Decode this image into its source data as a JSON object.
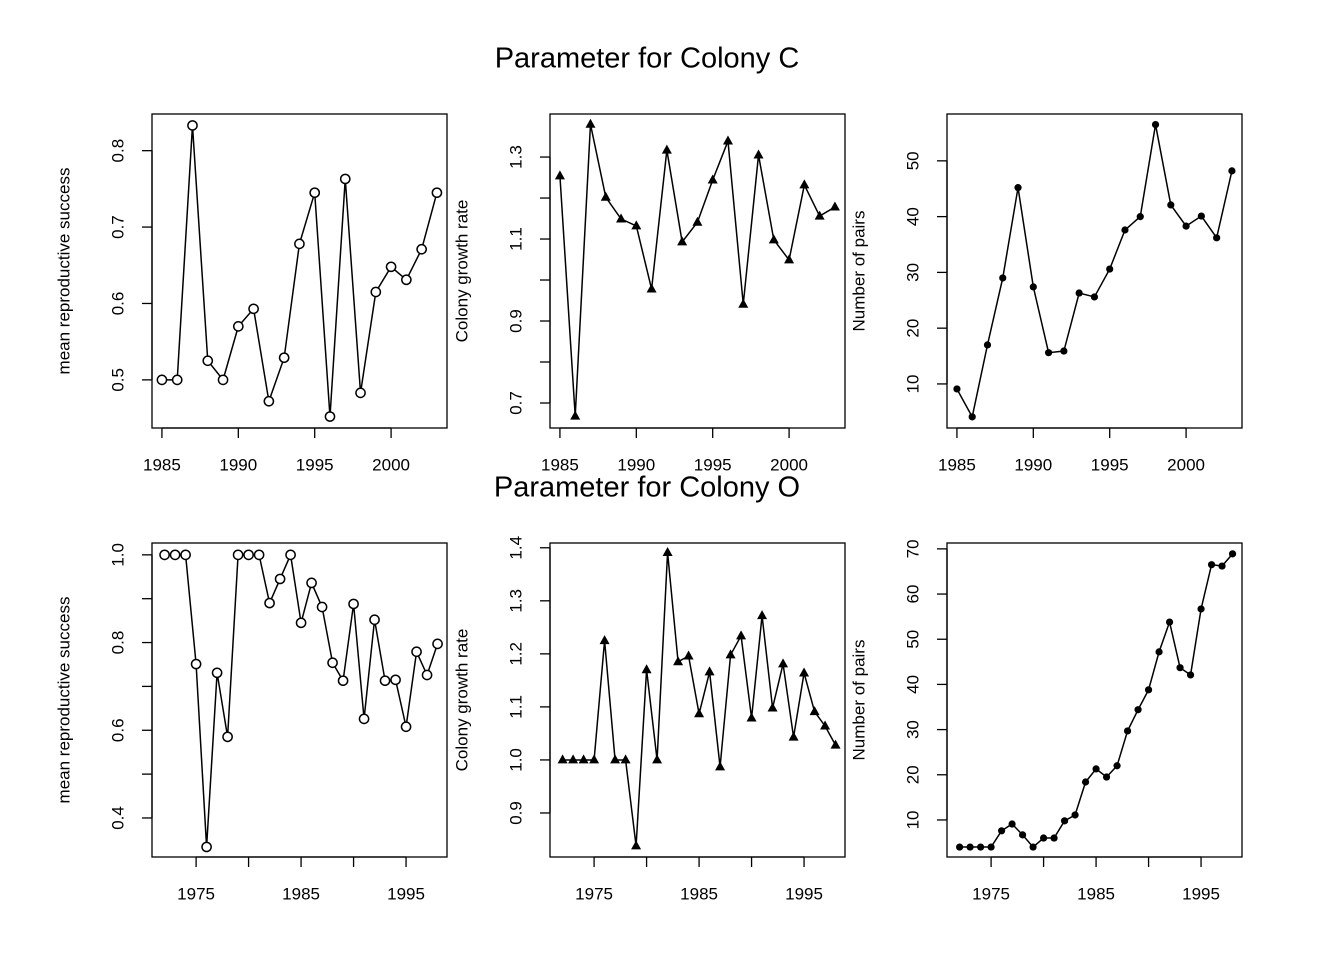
{
  "chart_data": [
    {
      "type": "line",
      "ylabel": "mean reproductive success",
      "marker": "open-circle",
      "color": "#000000",
      "x": [
        1985,
        1986,
        1987,
        1988,
        1989,
        1990,
        1991,
        1992,
        1993,
        1994,
        1995,
        1996,
        1997,
        1998,
        1999,
        2000,
        2001,
        2002,
        2003
      ],
      "values": [
        0.5,
        0.5,
        0.833,
        0.525,
        0.5,
        0.57,
        0.593,
        0.472,
        0.529,
        0.678,
        0.745,
        0.452,
        0.763,
        0.483,
        0.615,
        0.648,
        0.631,
        0.671,
        0.745
      ],
      "xlim": [
        1984.35,
        2003.66
      ],
      "ylim": [
        0.437,
        0.848
      ],
      "xticks": [
        1985,
        1990,
        1995,
        2000
      ],
      "yticks": [
        0.5,
        0.6,
        0.7,
        0.8
      ]
    },
    {
      "type": "line",
      "title": "Parameter for Colony C",
      "ylabel": "Colony growth rate",
      "marker": "triangle",
      "color": "#000000",
      "x": [
        1985,
        1986,
        1987,
        1988,
        1989,
        1990,
        1991,
        1992,
        1993,
        1994,
        1995,
        1996,
        1997,
        1998,
        1999,
        2000,
        2001,
        2002,
        2003
      ],
      "values": [
        1.254,
        0.668,
        1.38,
        1.202,
        1.149,
        1.132,
        0.978,
        1.317,
        1.093,
        1.141,
        1.244,
        1.339,
        0.941,
        1.305,
        1.098,
        1.049,
        1.232,
        1.156,
        1.178
      ],
      "xlim": [
        1984.35,
        2003.66
      ],
      "ylim": [
        0.639,
        1.405
      ],
      "xticks": [
        1985,
        1990,
        1995,
        2000
      ],
      "yticks": [
        0.7,
        0.9,
        1.1,
        1.3
      ],
      "minor_yticks": [
        0.8,
        1.0,
        1.2
      ]
    },
    {
      "type": "line",
      "ylabel": "Number of pairs",
      "marker": "dot",
      "color": "#000000",
      "x": [
        1985,
        1986,
        1987,
        1988,
        1989,
        1990,
        1991,
        1992,
        1993,
        1994,
        1995,
        1996,
        1997,
        1998,
        1999,
        2000,
        2001,
        2002,
        2003
      ],
      "values": [
        9.1,
        4.1,
        17.0,
        29.0,
        45.2,
        27.4,
        15.6,
        15.9,
        26.3,
        25.6,
        30.6,
        37.6,
        40.0,
        56.5,
        42.1,
        38.3,
        40.1,
        36.2,
        48.2
      ],
      "xlim": [
        1984.35,
        2003.66
      ],
      "ylim": [
        2.1,
        58.4
      ],
      "xticks": [
        1985,
        1990,
        1995,
        2000
      ],
      "yticks": [
        10,
        20,
        30,
        40,
        50
      ]
    },
    {
      "type": "line",
      "ylabel": "mean reproductive success",
      "marker": "open-circle",
      "color": "#000000",
      "x": [
        1972,
        1973,
        1974,
        1975,
        1976,
        1977,
        1978,
        1979,
        1980,
        1981,
        1982,
        1983,
        1984,
        1985,
        1986,
        1987,
        1988,
        1989,
        1990,
        1991,
        1992,
        1993,
        1994,
        1995,
        1996,
        1997,
        1998
      ],
      "values": [
        1.0,
        1.0,
        1.0,
        0.751,
        0.334,
        0.731,
        0.585,
        1.0,
        1.0,
        1.0,
        0.89,
        0.945,
        1.0,
        0.845,
        0.936,
        0.881,
        0.754,
        0.713,
        0.888,
        0.626,
        0.852,
        0.713,
        0.715,
        0.608,
        0.779,
        0.726,
        0.797
      ],
      "xlim": [
        1970.8,
        1998.9
      ],
      "ylim": [
        0.311,
        1.027
      ],
      "xticks": [
        1975,
        1985,
        1995
      ],
      "minor_xticks": [
        1980,
        1990
      ],
      "yticks": [
        0.4,
        0.6,
        0.8,
        {
          "value": 1.0,
          "label": "1.0"
        }
      ],
      "minor_yticks": [
        0.5,
        0.7,
        0.9
      ]
    },
    {
      "type": "line",
      "title": "Parameter for Colony O",
      "ylabel": "Colony growth rate",
      "marker": "triangle",
      "color": "#000000",
      "x": [
        1972,
        1973,
        1974,
        1975,
        1976,
        1977,
        1978,
        1979,
        1980,
        1981,
        1982,
        1983,
        1984,
        1985,
        1986,
        1987,
        1988,
        1989,
        1990,
        1991,
        1992,
        1993,
        1994,
        1995,
        1996,
        1997,
        1998
      ],
      "values": [
        1.0,
        1.0,
        1.0,
        1.0,
        1.225,
        1.0,
        1.0,
        0.838,
        1.17,
        1.0,
        1.391,
        1.185,
        1.196,
        1.087,
        1.166,
        0.987,
        1.198,
        1.234,
        1.079,
        1.272,
        1.098,
        1.181,
        1.043,
        1.164,
        1.091,
        1.064,
        1.028
      ],
      "xlim": [
        1970.8,
        1998.9
      ],
      "ylim": [
        0.817,
        1.409
      ],
      "xticks": [
        1975,
        1985,
        1995
      ],
      "minor_xticks": [
        1980,
        1990
      ],
      "yticks": [
        0.9,
        {
          "value": 1.0,
          "label": "1.0"
        },
        1.1,
        1.2,
        1.3,
        1.4
      ]
    },
    {
      "type": "line",
      "ylabel": "Number of pairs",
      "marker": "dot",
      "color": "#000000",
      "x": [
        1972,
        1973,
        1974,
        1975,
        1976,
        1977,
        1978,
        1979,
        1980,
        1981,
        1982,
        1983,
        1984,
        1985,
        1986,
        1987,
        1988,
        1989,
        1990,
        1991,
        1992,
        1993,
        1994,
        1995,
        1996,
        1997,
        1998
      ],
      "values": [
        4.0,
        4.0,
        4.0,
        4.0,
        7.6,
        9.1,
        6.7,
        4.0,
        6.0,
        6.0,
        9.8,
        11.1,
        18.4,
        21.3,
        19.5,
        22.0,
        29.7,
        34.4,
        38.8,
        47.2,
        53.8,
        43.7,
        42.1,
        56.7,
        66.5,
        66.2,
        68.9
      ],
      "xlim": [
        1970.8,
        1998.9
      ],
      "ylim": [
        1.8,
        71.3
      ],
      "xticks": [
        1975,
        1985,
        1995
      ],
      "minor_xticks": [
        1980,
        1990
      ],
      "yticks": [
        10,
        20,
        30,
        40,
        50,
        60,
        70
      ]
    }
  ]
}
